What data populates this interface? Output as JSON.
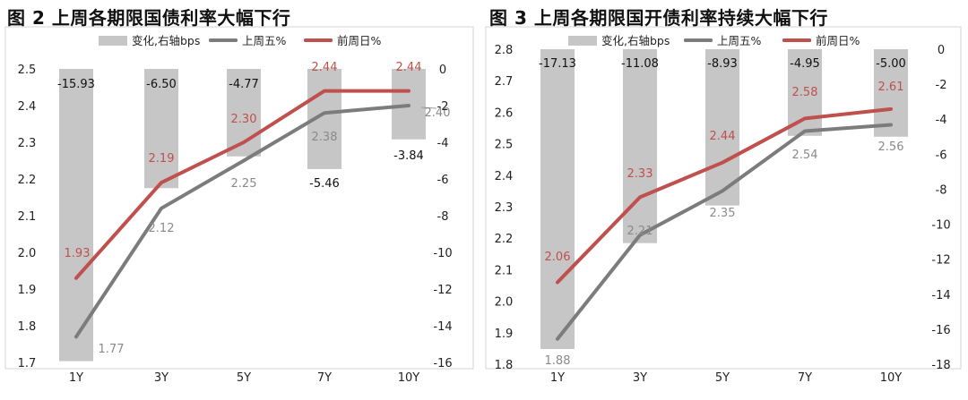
{
  "colors": {
    "bar": "#c6c6c6",
    "friday": "#7c7c7c",
    "prev": "#c0504d",
    "axis_text": "#222222",
    "bar_label": "#111111",
    "friday_label": "#8a8a8a",
    "prev_label": "#c0504d",
    "frame": "#d6d6d6"
  },
  "chart_data": [
    {
      "type": "bar",
      "title": "图 2  上周各期限国债利率大幅下行",
      "categories": [
        "1Y",
        "3Y",
        "5Y",
        "7Y",
        "10Y"
      ],
      "legend": [
        "变化,右轴bps",
        "上周五%",
        "前周日%"
      ],
      "legend_position": "top",
      "series": [
        {
          "name": "变化,右轴bps",
          "type": "bar",
          "axis": "right",
          "values": [
            -15.93,
            -6.5,
            -4.77,
            -5.46,
            -3.84
          ],
          "labels": [
            "-15.93",
            "-6.50",
            "-4.77",
            "-5.46",
            "-3.84"
          ]
        },
        {
          "name": "上周五%",
          "type": "line",
          "axis": "left",
          "values": [
            1.77,
            2.12,
            2.25,
            2.38,
            2.4
          ],
          "labels": [
            "1.77",
            "2.12",
            "2.25",
            "2.38",
            "2.40"
          ]
        },
        {
          "name": "前周日%",
          "type": "line",
          "axis": "left",
          "values": [
            1.93,
            2.19,
            2.3,
            2.44,
            2.44
          ],
          "labels": [
            "1.93",
            "2.19",
            "2.30",
            "2.44",
            "2.44"
          ]
        }
      ],
      "y_left": {
        "min": 1.7,
        "max": 2.5,
        "ticks": [
          "2.5",
          "2.4",
          "2.3",
          "2.2",
          "2.1",
          "2.0",
          "1.9",
          "1.8",
          "1.7"
        ]
      },
      "y_right": {
        "min": -16,
        "max": 0,
        "ticks": [
          "0",
          "-2",
          "-4",
          "-6",
          "-8",
          "-10",
          "-12",
          "-14",
          "-16"
        ]
      },
      "grid": false
    },
    {
      "type": "bar",
      "title": "图 3  上周各期限国开债利率持续大幅下行",
      "categories": [
        "1Y",
        "3Y",
        "5Y",
        "7Y",
        "10Y"
      ],
      "legend": [
        "变化,右轴bps",
        "上周五%",
        "前周日%"
      ],
      "legend_position": "top",
      "series": [
        {
          "name": "变化,右轴bps",
          "type": "bar",
          "axis": "right",
          "values": [
            -17.13,
            -11.08,
            -8.93,
            -4.95,
            -5.0
          ],
          "labels": [
            "-17.13",
            "-11.08",
            "-8.93",
            "-4.95",
            "-5.00"
          ]
        },
        {
          "name": "上周五%",
          "type": "line",
          "axis": "left",
          "values": [
            1.88,
            2.21,
            2.35,
            2.54,
            2.56
          ],
          "labels": [
            "1.88",
            "2.21",
            "2.35",
            "2.54",
            "2.56"
          ]
        },
        {
          "name": "前周日%",
          "type": "line",
          "axis": "left",
          "values": [
            2.06,
            2.33,
            2.44,
            2.58,
            2.61
          ],
          "labels": [
            "2.06",
            "2.33",
            "2.44",
            "2.58",
            "2.61"
          ]
        }
      ],
      "y_left": {
        "min": 1.8,
        "max": 2.8,
        "ticks": [
          "2.8",
          "2.7",
          "2.6",
          "2.5",
          "2.4",
          "2.3",
          "2.2",
          "2.1",
          "2.0",
          "1.9",
          "1.8"
        ]
      },
      "y_right": {
        "min": -18,
        "max": 0,
        "ticks": [
          "0",
          "-2",
          "-4",
          "-6",
          "-8",
          "-10",
          "-12",
          "-14",
          "-16",
          "-18"
        ]
      },
      "grid": false
    }
  ]
}
